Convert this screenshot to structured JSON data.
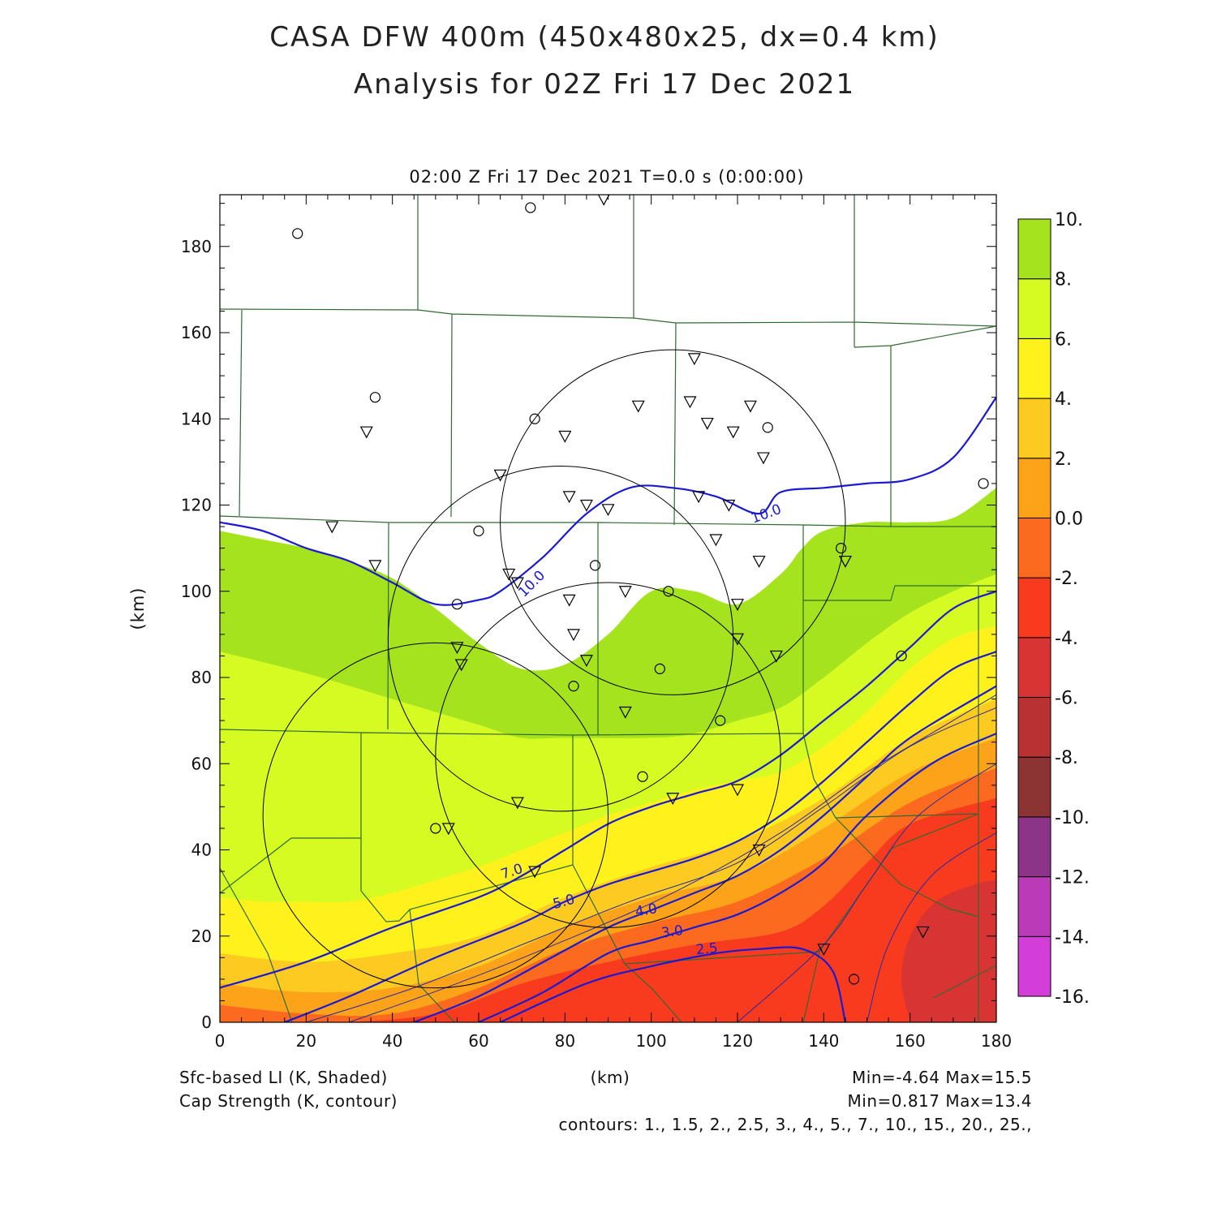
{
  "title": {
    "line1": "CASA DFW 400m (450x480x25, dx=0.4 km)",
    "line2": "Analysis for 02Z Fri 17 Dec 2021"
  },
  "time_label": "02:00 Z Fri 17 Dec 2021     T=0.0 s (0:00:00)",
  "footer": {
    "shaded_label": "Sfc-based LI (K, Shaded)",
    "contour_label": "Cap Strength (K, contour)",
    "xunit": "(km)",
    "shaded_minmax": "Min=-4.64  Max=15.5",
    "contour_minmax": "Min=0.817  Max=13.4",
    "contours_list": "contours: 1., 1.5, 2., 2.5, 3., 4., 5., 7., 10., 15., 20., 25.,"
  },
  "colors": {
    "missing": "#ffffff",
    "contour": "#1a1ad0",
    "thin_contour": "#2a2aa0",
    "county": "#2f6b2f",
    "range_ring": "#000000"
  },
  "chart_data": {
    "type": "heatmap",
    "xlabel": "(km)",
    "ylabel": "(km)",
    "xlim": [
      0,
      180
    ],
    "ylim": [
      0,
      192
    ],
    "xticks": [
      0,
      20,
      40,
      60,
      80,
      100,
      120,
      140,
      160,
      180
    ],
    "yticks": [
      0,
      20,
      40,
      60,
      80,
      100,
      120,
      140,
      160,
      180
    ],
    "colorbar": {
      "levels": [
        -16,
        -14,
        -12,
        -10,
        -8,
        -6,
        -4,
        -2,
        0,
        2,
        4,
        6,
        8,
        10
      ],
      "labels": [
        "-16.",
        "-14.",
        "-12.",
        "-10.",
        "-8.",
        "-6.",
        "-4.",
        "-2.",
        "0.0",
        "2.",
        "4.",
        "6.",
        "8.",
        "10."
      ],
      "colors": [
        "#d43ed8",
        "#bb3ab8",
        "#8c3488",
        "#8c3434",
        "#b83232",
        "#d83434",
        "#f83a1e",
        "#fb6a1e",
        "#fca31a",
        "#fdca22",
        "#fff21c",
        "#d5fb22",
        "#a5e31e"
      ]
    },
    "shaded_bands": [
      {
        "value_range": [
          8,
          10
        ],
        "color": "#a5e31e",
        "upper_edge": [
          [
            0,
            114
          ],
          [
            10,
            112
          ],
          [
            20,
            110
          ],
          [
            30,
            107
          ],
          [
            40,
            103
          ],
          [
            50,
            96
          ],
          [
            60,
            88
          ],
          [
            70,
            82
          ],
          [
            80,
            83
          ],
          [
            90,
            90
          ],
          [
            100,
            100
          ],
          [
            110,
            100
          ],
          [
            120,
            97
          ],
          [
            130,
            104
          ],
          [
            135,
            110
          ],
          [
            140,
            114
          ],
          [
            150,
            116
          ],
          [
            160,
            116
          ],
          [
            170,
            117
          ],
          [
            180,
            124
          ]
        ]
      },
      {
        "value_range": [
          6,
          8
        ],
        "color": "#d5fb22",
        "upper_edge": [
          [
            0,
            86
          ],
          [
            20,
            81
          ],
          [
            40,
            75
          ],
          [
            60,
            69
          ],
          [
            70,
            66
          ],
          [
            80,
            66
          ],
          [
            100,
            66
          ],
          [
            110,
            67
          ],
          [
            120,
            70
          ],
          [
            130,
            73
          ],
          [
            140,
            80
          ],
          [
            150,
            88
          ],
          [
            160,
            95
          ],
          [
            170,
            100
          ],
          [
            180,
            104
          ]
        ]
      },
      {
        "value_range": [
          4,
          6
        ],
        "color": "#fff21c",
        "upper_edge": [
          [
            0,
            29
          ],
          [
            10,
            28
          ],
          [
            20,
            28
          ],
          [
            30,
            28
          ],
          [
            40,
            30
          ],
          [
            50,
            33
          ],
          [
            60,
            36
          ],
          [
            70,
            40
          ],
          [
            80,
            44
          ],
          [
            90,
            48
          ],
          [
            100,
            51
          ],
          [
            110,
            54
          ],
          [
            120,
            56
          ],
          [
            130,
            58
          ],
          [
            140,
            64
          ],
          [
            150,
            72
          ],
          [
            160,
            82
          ],
          [
            170,
            89
          ],
          [
            180,
            92
          ]
        ]
      },
      {
        "value_range": [
          2,
          4
        ],
        "color": "#fdca22",
        "upper_edge": [
          [
            0,
            16
          ],
          [
            20,
            14
          ],
          [
            40,
            16
          ],
          [
            60,
            20
          ],
          [
            80,
            29
          ],
          [
            100,
            36
          ],
          [
            120,
            42
          ],
          [
            140,
            52
          ],
          [
            160,
            66
          ],
          [
            180,
            75
          ]
        ]
      },
      {
        "value_range": [
          0,
          2
        ],
        "color": "#fca31a",
        "upper_edge": [
          [
            0,
            9
          ],
          [
            20,
            7
          ],
          [
            40,
            8
          ],
          [
            60,
            13
          ],
          [
            80,
            22
          ],
          [
            100,
            29
          ],
          [
            120,
            34
          ],
          [
            140,
            45
          ],
          [
            160,
            58
          ],
          [
            180,
            66
          ]
        ]
      },
      {
        "value_range": [
          -2,
          0
        ],
        "color": "#fb6a1e",
        "upper_edge": [
          [
            0,
            4
          ],
          [
            20,
            2
          ],
          [
            40,
            2
          ],
          [
            60,
            8
          ],
          [
            80,
            17
          ],
          [
            100,
            23
          ],
          [
            120,
            28
          ],
          [
            140,
            38
          ],
          [
            160,
            51
          ],
          [
            180,
            59
          ]
        ]
      },
      {
        "value_range": [
          -4,
          -2
        ],
        "color": "#f83a1e",
        "upper_edge": [
          [
            30,
            0
          ],
          [
            50,
            2
          ],
          [
            70,
            9
          ],
          [
            90,
            14
          ],
          [
            110,
            18
          ],
          [
            130,
            21
          ],
          [
            140,
            27
          ],
          [
            150,
            37
          ],
          [
            160,
            46
          ],
          [
            180,
            52
          ]
        ]
      },
      {
        "value_range": [
          -6,
          -4
        ],
        "color": "#d83434",
        "upper_edge": [
          [
            160,
            0
          ],
          [
            158,
            10
          ],
          [
            160,
            20
          ],
          [
            166,
            28
          ],
          [
            175,
            32
          ],
          [
            180,
            33
          ]
        ]
      }
    ],
    "series": [
      {
        "name": "10.0",
        "values": [
          [
            0,
            116
          ],
          [
            10,
            114
          ],
          [
            20,
            110
          ],
          [
            30,
            107
          ],
          [
            40,
            102
          ],
          [
            50,
            97
          ],
          [
            60,
            98
          ],
          [
            65,
            100
          ],
          [
            75,
            108
          ],
          [
            85,
            118
          ],
          [
            95,
            124
          ],
          [
            105,
            124
          ],
          [
            115,
            122
          ],
          [
            125,
            118
          ],
          [
            130,
            123
          ],
          [
            140,
            124
          ],
          [
            150,
            125
          ],
          [
            160,
            126
          ],
          [
            170,
            131
          ],
          [
            180,
            145
          ]
        ]
      },
      {
        "name": "7.0",
        "values": [
          [
            0,
            8
          ],
          [
            20,
            14
          ],
          [
            40,
            22
          ],
          [
            60,
            29
          ],
          [
            70,
            34
          ],
          [
            80,
            40
          ],
          [
            90,
            46
          ],
          [
            100,
            50
          ],
          [
            110,
            53
          ],
          [
            120,
            56
          ],
          [
            130,
            62
          ],
          [
            140,
            70
          ],
          [
            150,
            78
          ],
          [
            160,
            87
          ],
          [
            170,
            96
          ],
          [
            180,
            100
          ]
        ]
      },
      {
        "name": "5.0",
        "values": [
          [
            15,
            0
          ],
          [
            30,
            6
          ],
          [
            50,
            15
          ],
          [
            70,
            23
          ],
          [
            80,
            28
          ],
          [
            90,
            32
          ],
          [
            100,
            35
          ],
          [
            110,
            38
          ],
          [
            120,
            42
          ],
          [
            130,
            48
          ],
          [
            140,
            56
          ],
          [
            150,
            65
          ],
          [
            160,
            74
          ],
          [
            170,
            82
          ],
          [
            180,
            86
          ]
        ]
      },
      {
        "name": "4.0",
        "values": [
          [
            45,
            0
          ],
          [
            60,
            6
          ],
          [
            75,
            14
          ],
          [
            90,
            22
          ],
          [
            100,
            26
          ],
          [
            110,
            30
          ],
          [
            120,
            34
          ],
          [
            130,
            40
          ],
          [
            140,
            48
          ],
          [
            150,
            57
          ],
          [
            160,
            66
          ],
          [
            180,
            78
          ]
        ]
      },
      {
        "name": "3.0",
        "values": [
          [
            60,
            0
          ],
          [
            75,
            7
          ],
          [
            90,
            16
          ],
          [
            100,
            19
          ],
          [
            110,
            22
          ],
          [
            120,
            25
          ],
          [
            130,
            30
          ],
          [
            140,
            37
          ],
          [
            150,
            48
          ],
          [
            165,
            60
          ],
          [
            180,
            67
          ]
        ]
      },
      {
        "name": "2.5",
        "values": [
          [
            65,
            0
          ],
          [
            85,
            9
          ],
          [
            100,
            13
          ],
          [
            115,
            16
          ],
          [
            125,
            17
          ],
          [
            135,
            17
          ],
          [
            142,
            12
          ],
          [
            145,
            0
          ]
        ]
      }
    ],
    "annotations": [
      "10.0",
      "10.0",
      "7.0",
      "5.0",
      "4.0",
      "3.0",
      "2.5"
    ],
    "range_rings": [
      {
        "center": [
          105,
          116
        ],
        "radius": 40
      },
      {
        "center": [
          79,
          89
        ],
        "radius": 40
      },
      {
        "center": [
          90,
          62
        ],
        "radius": 40
      },
      {
        "center": [
          50,
          48
        ],
        "radius": 40
      }
    ],
    "stations_circle": [
      [
        18,
        183
      ],
      [
        72,
        189
      ],
      [
        36,
        145
      ],
      [
        73,
        140
      ],
      [
        60,
        114
      ],
      [
        55,
        97
      ],
      [
        87,
        106
      ],
      [
        104,
        100
      ],
      [
        82,
        78
      ],
      [
        102,
        82
      ],
      [
        116,
        70
      ],
      [
        98,
        57
      ],
      [
        50,
        45
      ],
      [
        127,
        138
      ],
      [
        144,
        110
      ],
      [
        158,
        85
      ],
      [
        177,
        125
      ],
      [
        147,
        10
      ]
    ],
    "stations_triangle": [
      [
        89,
        191
      ],
      [
        110,
        154
      ],
      [
        97,
        143
      ],
      [
        109,
        144
      ],
      [
        123,
        143
      ],
      [
        34,
        137
      ],
      [
        80,
        136
      ],
      [
        113,
        139
      ],
      [
        119,
        137
      ],
      [
        126,
        131
      ],
      [
        65,
        127
      ],
      [
        81,
        122
      ],
      [
        85,
        120
      ],
      [
        90,
        119
      ],
      [
        111,
        122
      ],
      [
        118,
        120
      ],
      [
        26,
        115
      ],
      [
        36,
        106
      ],
      [
        67,
        104
      ],
      [
        69,
        102
      ],
      [
        115,
        112
      ],
      [
        125,
        107
      ],
      [
        145,
        107
      ],
      [
        81,
        98
      ],
      [
        94,
        100
      ],
      [
        120,
        97
      ],
      [
        55,
        87
      ],
      [
        56,
        83
      ],
      [
        82,
        90
      ],
      [
        85,
        84
      ],
      [
        120,
        89
      ],
      [
        129,
        85
      ],
      [
        94,
        72
      ],
      [
        69,
        51
      ],
      [
        105,
        52
      ],
      [
        120,
        54
      ],
      [
        53,
        45
      ],
      [
        73,
        35
      ],
      [
        125,
        40
      ],
      [
        140,
        17
      ],
      [
        163,
        21
      ]
    ]
  }
}
